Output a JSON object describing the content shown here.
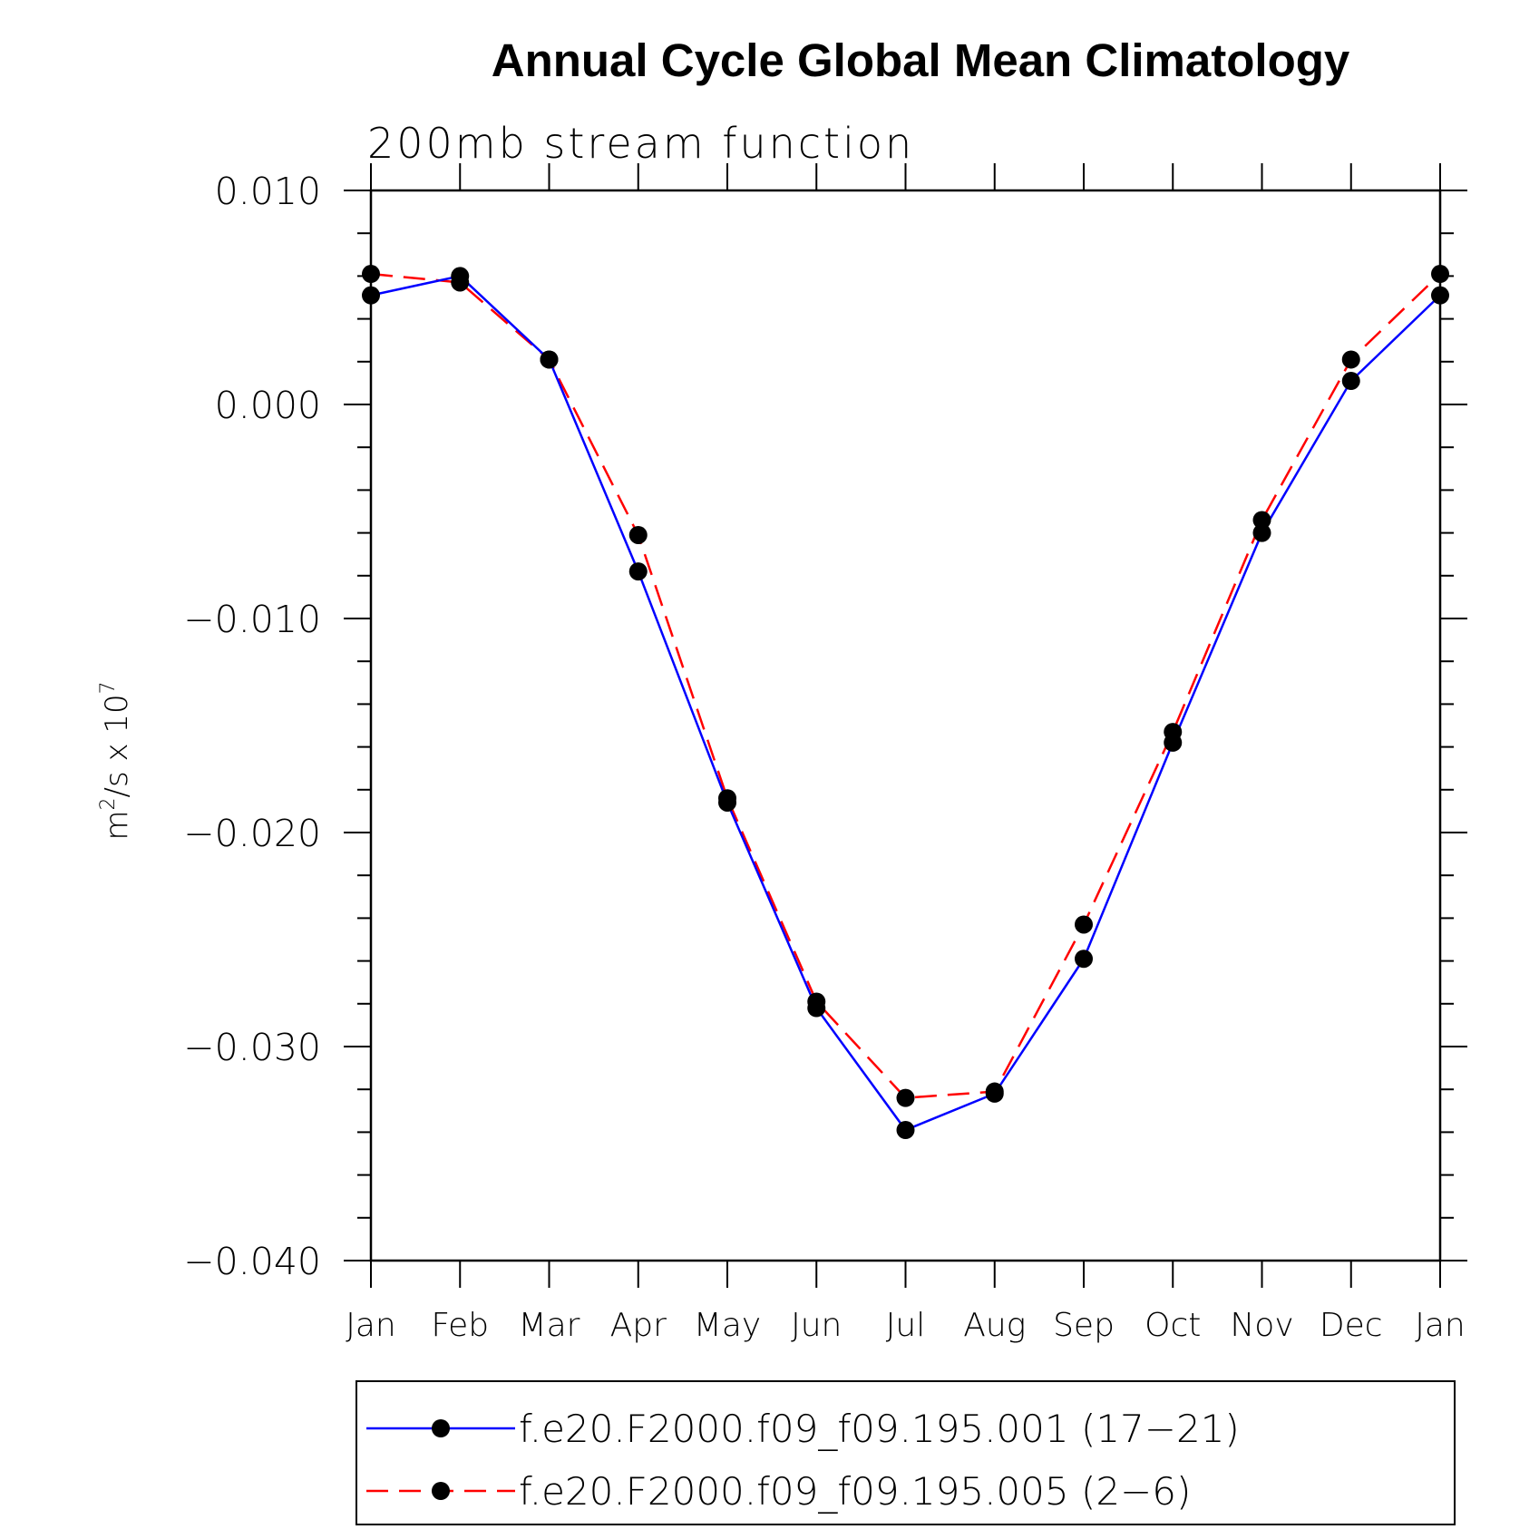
{
  "chart_data": {
    "type": "line",
    "title": "Annual Cycle Global Mean Climatology",
    "subtitle": "200mb stream function",
    "ylabel": {
      "base": "m",
      "exp1": "2",
      "mid": "/s x 10",
      "exp2": "7"
    },
    "xlabel": "",
    "categories": [
      "Jan",
      "Feb",
      "Mar",
      "Apr",
      "May",
      "Jun",
      "Jul",
      "Aug",
      "Sep",
      "Oct",
      "Nov",
      "Dec",
      "Jan"
    ],
    "ylim": [
      -0.04,
      0.01
    ],
    "yticks": [
      0.01,
      0.0,
      -0.01,
      -0.02,
      -0.03,
      -0.04
    ],
    "ytick_labels": [
      "0.010",
      "0.000",
      "−0.010",
      "−0.020",
      "−0.030",
      "−0.040"
    ],
    "y_minor_step": 0.002,
    "grid": false,
    "legend_position": "bottom",
    "series": [
      {
        "name": "f.e20.F2000.f09_f09.195.001 (17−21)",
        "color": "#0000ff",
        "dash": "solid",
        "marker": "filled-circle",
        "values": [
          0.0051,
          0.006,
          0.0021,
          -0.0078,
          -0.0186,
          -0.0282,
          -0.0339,
          -0.0322,
          -0.0259,
          -0.0158,
          -0.006,
          0.0011,
          0.0051
        ]
      },
      {
        "name": "f.e20.F2000.f09_f09.195.005 (2−6)",
        "color": "#ff0000",
        "dash": "dashed",
        "marker": "filled-circle",
        "values": [
          0.0061,
          0.0057,
          0.0021,
          -0.0061,
          -0.0184,
          -0.0279,
          -0.0324,
          -0.0321,
          -0.0243,
          -0.0153,
          -0.0054,
          0.0021,
          0.0061
        ]
      }
    ]
  }
}
